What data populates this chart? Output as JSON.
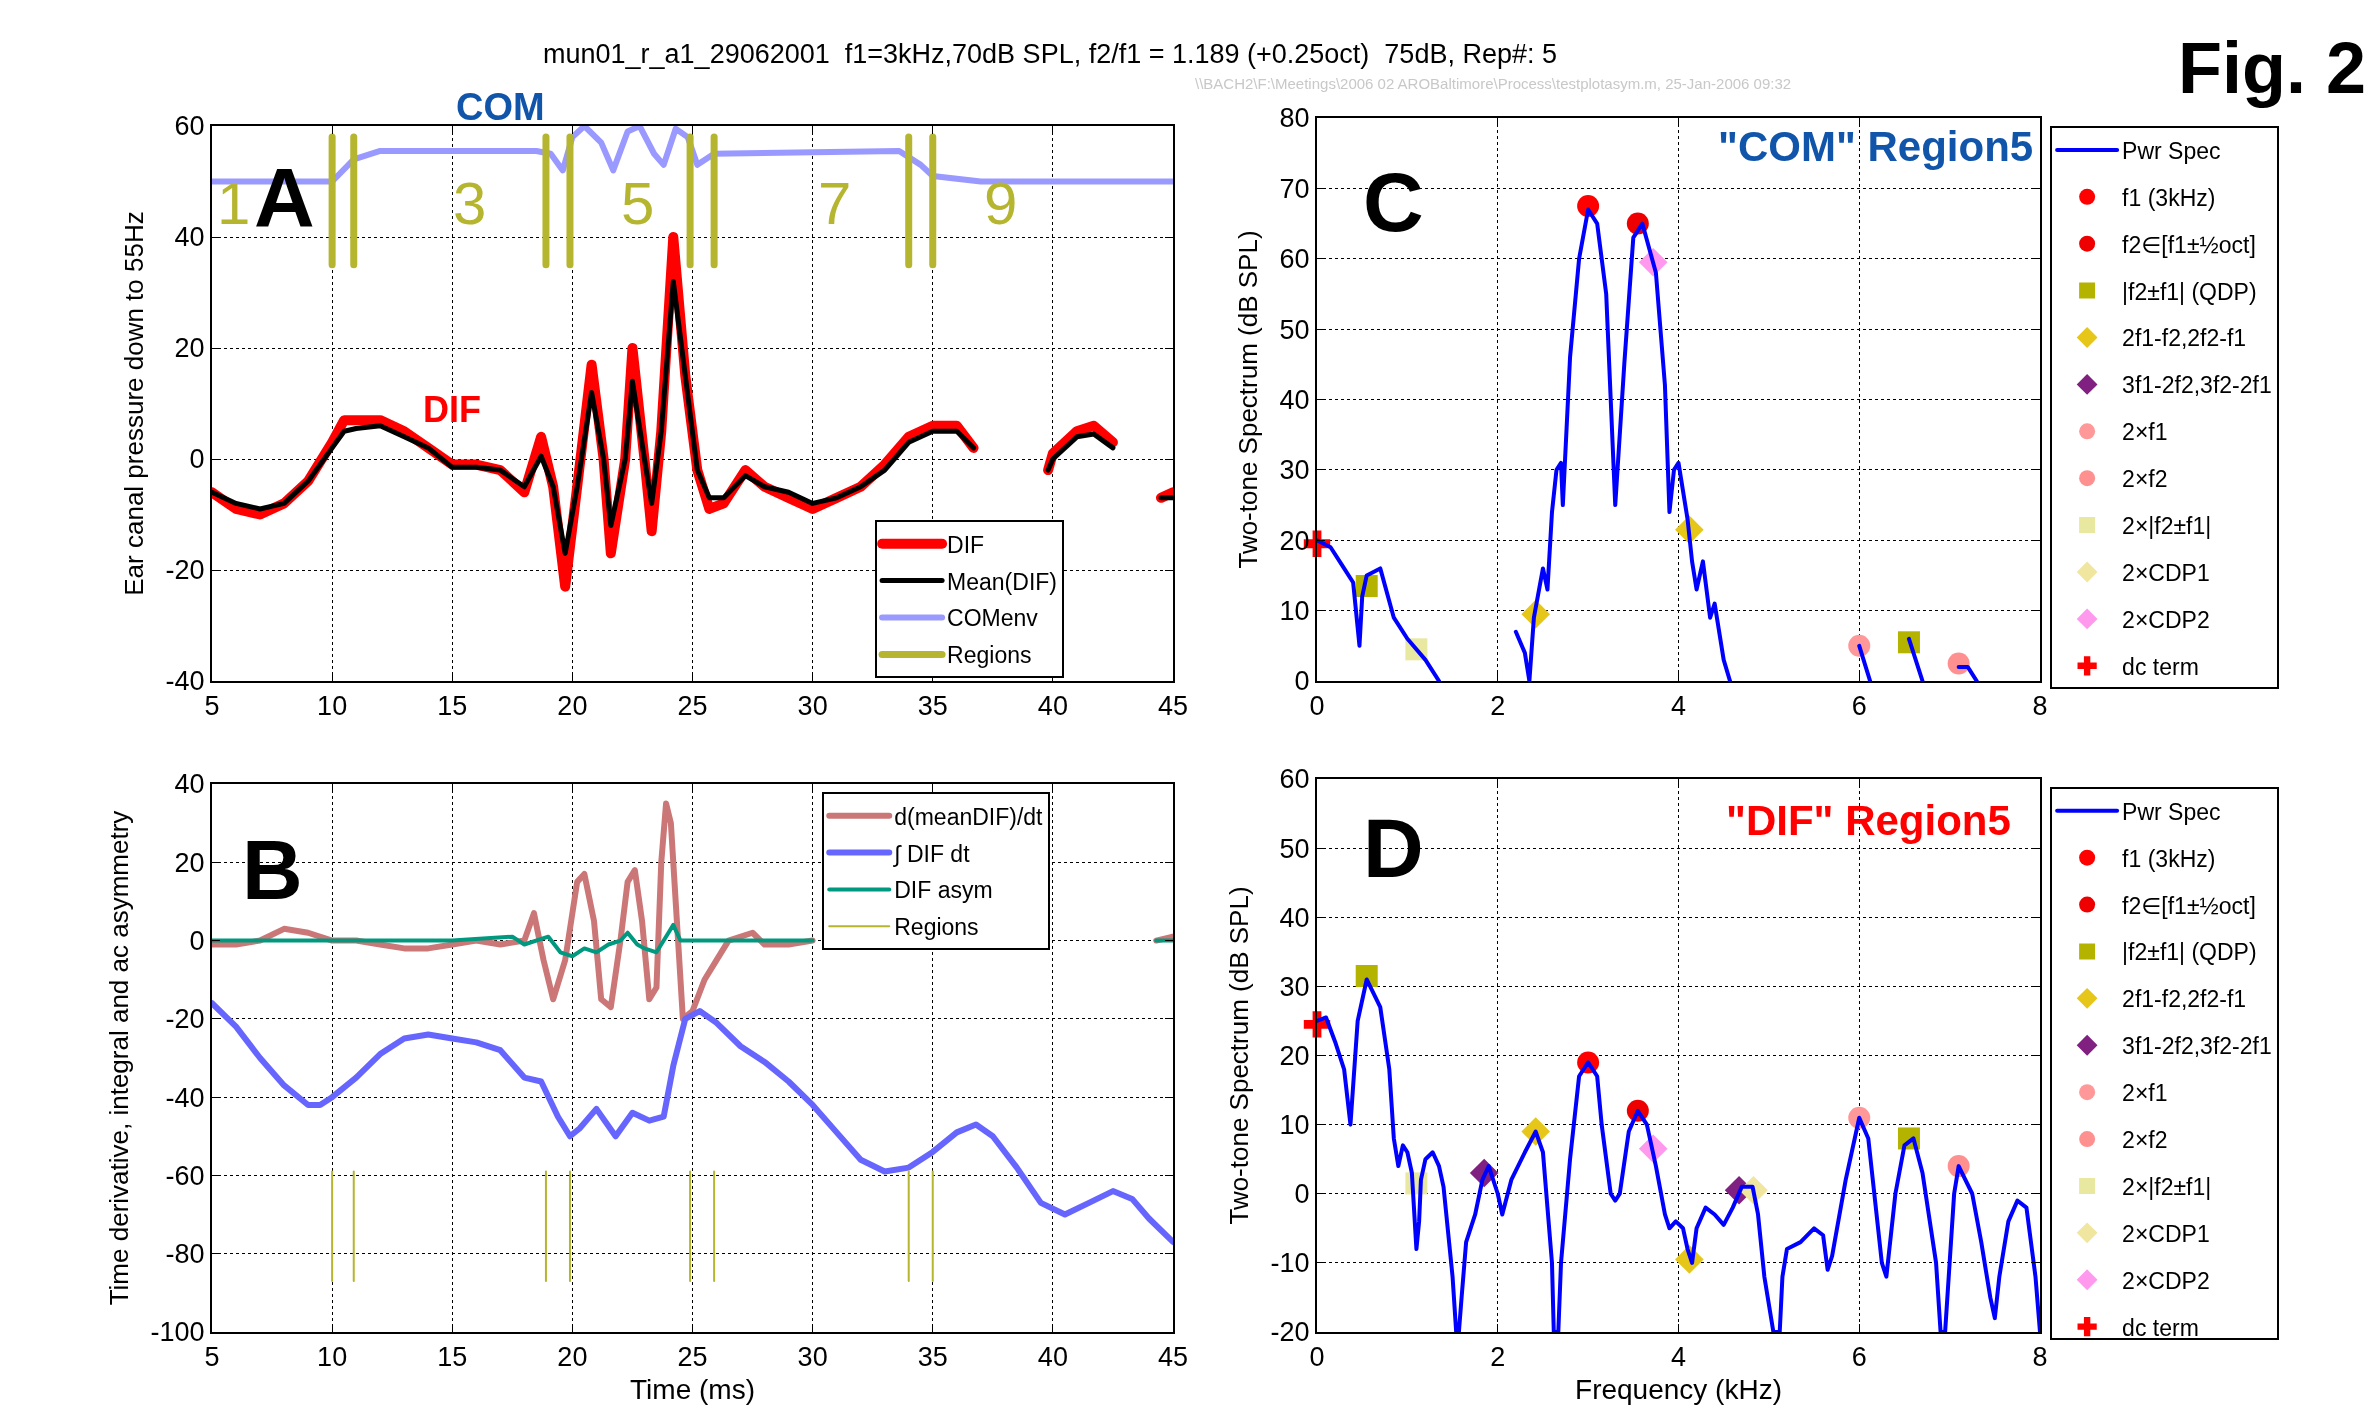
{
  "chart_data": [
    {
      "type": "line",
      "title": "mun01_r_a1_29062001  f1=3kHz,70dB SPL, f2/f1 = 1.189 (+0.25oct)  75dB, Rep#: 5",
      "ylabel": "Ear canal pressure down to 55Hz",
      "annotations": [
        "A",
        "COM",
        "DIF",
        "1",
        "3",
        "5",
        "7",
        "9",
        "\\\\BACH2\\F:\\Meetings\\2006 02 AROBaltimore\\Process\\testplotasym.m, 25-Jan-2006 09:32",
        "Fig. 2"
      ],
      "xlim": [
        5,
        45
      ],
      "xticks": [
        5,
        10,
        15,
        20,
        25,
        30,
        35,
        40,
        45
      ],
      "ylim": [
        -40,
        60
      ],
      "yticks": [
        -40,
        -20,
        0,
        20,
        40,
        60
      ],
      "grid": true,
      "legend": "bottom right",
      "series": [
        {
          "name": "DIF",
          "color": "#ff0000",
          "x": [
            5,
            6,
            7,
            8,
            9,
            10,
            10.5,
            11,
            12,
            13,
            14,
            15,
            16,
            17,
            18,
            18.7,
            19.2,
            19.7,
            20.2,
            20.8,
            21.3,
            21.6,
            22.2,
            22.5,
            23.0,
            23.3,
            23.7,
            24.2,
            24.7,
            25.2,
            25.7,
            26.3,
            27.2,
            28,
            29,
            30,
            31,
            32,
            33,
            34,
            35,
            36,
            36.7,
            37.3,
            39.8,
            40,
            41,
            41.7,
            42.5,
            43.2,
            44.5,
            45
          ],
          "values": [
            -6,
            -9,
            -10,
            -8,
            -4,
            3,
            7,
            7,
            7,
            5,
            2,
            -1,
            -1,
            -2,
            -6,
            4,
            -5,
            -23,
            -5,
            17,
            0,
            -17,
            0,
            20,
            0,
            -13,
            5,
            40,
            15,
            -2,
            -9,
            -8,
            -2,
            -5,
            -7,
            -9,
            -7,
            -5,
            -1,
            4,
            6,
            6,
            2,
            null,
            -2,
            1,
            5,
            6,
            3,
            null,
            -7,
            -6
          ]
        },
        {
          "name": "Mean(DIF)",
          "color": "#000000",
          "x": [
            5,
            6,
            7,
            8,
            9,
            10,
            10.5,
            11,
            12,
            13,
            14,
            15,
            16,
            17,
            18,
            18.7,
            19.2,
            19.7,
            20.2,
            20.8,
            21.3,
            21.6,
            22.2,
            22.5,
            23.0,
            23.3,
            23.7,
            24.2,
            24.7,
            25.2,
            25.7,
            26.3,
            27.2,
            28,
            29,
            30,
            31,
            32,
            33,
            34,
            35,
            36,
            36.7,
            37.3,
            39.8,
            40,
            41,
            41.7,
            42.5,
            43.2,
            44.5,
            45
          ],
          "values": [
            -6,
            -8,
            -9,
            -8,
            -4,
            2,
            5,
            5.5,
            6,
            4,
            2,
            -1.5,
            -1.5,
            -2,
            -5,
            0.5,
            -5,
            -17,
            -5,
            12,
            0,
            -12,
            0,
            14,
            0,
            -8,
            5,
            32,
            15,
            -2,
            -7,
            -7,
            -3,
            -5,
            -6,
            -8,
            -7,
            -5,
            -2,
            3,
            5,
            5,
            2,
            null,
            -2,
            0,
            4,
            4.5,
            2,
            null,
            -7,
            -7
          ]
        },
        {
          "name": "COMenv",
          "color": "#9999ff",
          "x": [
            5,
            10,
            10.9,
            12,
            18.5,
            19.1,
            19.6,
            20,
            20.5,
            21.2,
            21.7,
            22.3,
            22.8,
            23.4,
            23.8,
            24.3,
            24.8,
            25.2,
            25.9,
            33.6,
            34.5,
            35,
            36,
            37,
            45
          ],
          "values": [
            50,
            50,
            54,
            55.5,
            55.5,
            55,
            52,
            58,
            60,
            57,
            52,
            59,
            60,
            55,
            53,
            59.5,
            58,
            53,
            55,
            55.5,
            53,
            51,
            50.5,
            50,
            50
          ]
        },
        {
          "name": "Regions",
          "color": "#b5b530",
          "x": [
            10,
            10,
            null,
            10.9,
            10.9,
            null,
            18.9,
            18.9,
            null,
            19.9,
            19.9,
            null,
            24.9,
            24.9,
            null,
            25.9,
            25.9,
            null,
            34,
            34,
            null,
            35,
            35
          ],
          "values": [
            35,
            58,
            null,
            35,
            58,
            null,
            35,
            58,
            null,
            35,
            58,
            null,
            35,
            58,
            null,
            35,
            58,
            null,
            35,
            58,
            null,
            35,
            58
          ]
        }
      ]
    },
    {
      "type": "line",
      "xlabel": "Time (ms)",
      "ylabel": "Time derivative, integral and ac asymmetry",
      "annotations": [
        "B"
      ],
      "xlim": [
        5,
        45
      ],
      "xticks": [
        5,
        10,
        15,
        20,
        25,
        30,
        35,
        40,
        45
      ],
      "ylim": [
        -100,
        40
      ],
      "yticks": [
        -100,
        -80,
        -60,
        -40,
        -20,
        0,
        20,
        40
      ],
      "grid": true,
      "legend": "top right",
      "series": [
        {
          "name": "d(meanDIF)/dt",
          "color": "#cc7777",
          "x": [
            5,
            6,
            7,
            8,
            9,
            10,
            11,
            12,
            13,
            14,
            15,
            16,
            17,
            18,
            18.4,
            18.8,
            19.2,
            19.7,
            20.2,
            20.5,
            20.9,
            21.2,
            21.6,
            22.0,
            22.3,
            22.6,
            22.9,
            23.2,
            23.5,
            23.7,
            23.9,
            24.1,
            24.4,
            24.6,
            25,
            25.5,
            26,
            26.5,
            27.5,
            28,
            29,
            30,
            31,
            44.3,
            45
          ],
          "values": [
            -1,
            -1,
            0,
            3,
            2,
            0,
            0,
            -1,
            -2,
            -2,
            -1,
            0,
            -1,
            0,
            7,
            -5,
            -15,
            -5,
            15,
            17,
            5,
            -15,
            -17,
            0,
            15,
            18,
            5,
            -15,
            -12,
            20,
            35,
            30,
            0,
            -20,
            -18,
            -10,
            -5,
            0,
            2,
            -1,
            -1,
            0,
            null,
            0,
            1
          ]
        },
        {
          "name": "∫ DIF dt",
          "color": "#6666ff",
          "x": [
            5,
            6,
            7,
            8,
            9,
            9.5,
            10,
            11,
            12,
            13,
            14,
            15,
            16,
            17,
            18,
            18.7,
            19.4,
            19.9,
            20.3,
            21,
            21.8,
            22.5,
            23.2,
            23.8,
            24.2,
            24.7,
            25.3,
            26,
            27,
            28,
            29,
            30,
            31,
            32,
            33,
            34,
            35,
            36,
            36.8,
            37.5,
            38.5,
            39.5,
            40.5,
            41.5,
            42.5,
            43.3,
            44,
            45
          ],
          "values": [
            -16,
            -22,
            -30,
            -37,
            -42,
            -42,
            -40,
            -35,
            -29,
            -25,
            -24,
            -25,
            -26,
            -28,
            -35,
            -36,
            -45,
            -50,
            -48,
            -43,
            -50,
            -44,
            -46,
            -45,
            -32,
            -20,
            -18,
            -21,
            -27,
            -31,
            -36,
            -42,
            -49,
            -56,
            -59,
            -58,
            -54,
            -49,
            -47,
            -50,
            -58,
            -67,
            -70,
            -67,
            -64,
            -66,
            -71,
            -77
          ]
        },
        {
          "name": "DIF asym",
          "color": "#009980",
          "x": [
            5,
            10,
            15,
            17.5,
            18,
            19,
            19.5,
            20,
            20.5,
            21,
            21.5,
            22,
            22.3,
            22.7,
            23,
            23.5,
            24,
            24.2,
            24.5,
            25,
            26,
            30,
            31,
            44.3,
            45
          ],
          "values": [
            0,
            0,
            0,
            1,
            -1,
            1,
            -3,
            -4,
            -2,
            -3,
            -1,
            0,
            2,
            -1,
            -2,
            -3,
            2,
            4,
            0,
            0,
            0,
            0,
            null,
            0,
            0
          ]
        },
        {
          "name": "Regions",
          "color": "#b5b530",
          "x": [
            10,
            10,
            null,
            10.9,
            10.9,
            null,
            18.9,
            18.9,
            null,
            19.9,
            19.9,
            null,
            24.9,
            24.9,
            null,
            25.9,
            25.9,
            null,
            34,
            34,
            null,
            35,
            35
          ],
          "values": [
            -87,
            -59,
            null,
            -87,
            -59,
            null,
            -87,
            -59,
            null,
            -87,
            -59,
            null,
            -87,
            -59,
            null,
            -87,
            -59,
            null,
            -87,
            -59,
            null,
            -87,
            -59
          ]
        }
      ]
    },
    {
      "type": "line",
      "ylabel": "Two-tone Spectrum (dB SPL)",
      "annotations": [
        "C",
        "\"COM\" Region5"
      ],
      "xlim": [
        0,
        8
      ],
      "xticks": [
        0,
        2,
        4,
        6,
        8
      ],
      "ylim": [
        0,
        80
      ],
      "yticks": [
        0,
        10,
        20,
        30,
        40,
        50,
        60,
        70,
        80
      ],
      "grid": true,
      "legend": "right",
      "series": [
        {
          "name": "Pwr Spec",
          "color": "#0000ff",
          "x": [
            0,
            0.15,
            0.3,
            0.4,
            0.47,
            0.5,
            0.55,
            0.7,
            0.85,
            1.0,
            1.2,
            1.35,
            2.15,
            2.2,
            2.3,
            2.35,
            2.4,
            2.5,
            2.55,
            2.6,
            2.65,
            2.7,
            2.72,
            2.8,
            2.9,
            3.0,
            3.1,
            3.2,
            3.3,
            3.4,
            3.5,
            3.6,
            3.75,
            3.85,
            3.9,
            3.95,
            4.0,
            4.1,
            4.15,
            4.2,
            4.27,
            4.35,
            4.4,
            4.5,
            4.57,
            5.9,
            6.0,
            6.12,
            6.45,
            6.55,
            6.7,
            7.0,
            7.1,
            7.2,
            7.3
          ],
          "values": [
            20,
            19,
            16,
            14,
            5,
            12,
            15,
            16,
            9,
            6,
            3,
            0,
            null,
            7,
            4,
            0,
            9,
            16,
            13,
            24,
            30,
            31,
            25,
            46,
            60,
            67,
            65,
            55,
            25,
            45,
            63,
            65,
            58,
            42,
            24,
            30,
            31,
            23,
            17,
            13,
            17,
            9,
            11,
            3,
            0,
            null,
            5,
            0,
            null,
            6,
            0,
            null,
            2,
            2,
            0
          ]
        },
        {
          "name": "f1 (3kHz)",
          "type": "scatter",
          "marker": "circle",
          "color": "#ff0000",
          "x": [
            3
          ],
          "values": [
            67.5
          ]
        },
        {
          "name": "f2∈[f1±½oct]",
          "type": "scatter",
          "marker": "circle",
          "color": "#ee0000",
          "x": [
            3.55
          ],
          "values": [
            65
          ]
        },
        {
          "name": "|f2±f1| (QDP)",
          "type": "scatter",
          "marker": "square",
          "color": "#b3b300",
          "x": [
            0.55,
            6.55
          ],
          "values": [
            13.5,
            5.5
          ]
        },
        {
          "name": "2f1-f2,2f2-f1",
          "type": "scatter",
          "marker": "diamond",
          "color": "#e6c619",
          "x": [
            2.42,
            4.12
          ],
          "values": [
            9.5,
            21.5
          ]
        },
        {
          "name": "3f1-2f2,3f2-2f1",
          "type": "scatter",
          "marker": "diamond",
          "color": "#802080"
        },
        {
          "name": "2×f1",
          "type": "scatter",
          "marker": "circle",
          "color": "#ff9999",
          "x": [
            6
          ],
          "values": [
            5
          ]
        },
        {
          "name": "2×f2",
          "type": "scatter",
          "marker": "circle",
          "color": "#ff9090",
          "x": [
            7.1
          ],
          "values": [
            2.5
          ]
        },
        {
          "name": "2×|f2±f1|",
          "type": "scatter",
          "marker": "square",
          "color": "#e8e8a0",
          "x": [
            1.1
          ],
          "values": [
            4.5
          ]
        },
        {
          "name": "2×CDP1",
          "type": "scatter",
          "marker": "diamond",
          "color": "#f0e6a0"
        },
        {
          "name": "2×CDP2",
          "type": "scatter",
          "marker": "diamond",
          "color": "#ff99ee",
          "x": [
            3.72
          ],
          "values": [
            59.5
          ]
        },
        {
          "name": "dc term",
          "type": "scatter",
          "marker": "cross",
          "color": "#ff0000",
          "x": [
            0
          ],
          "values": [
            19.5
          ]
        }
      ]
    },
    {
      "type": "line",
      "xlabel": "Frequency (kHz)",
      "ylabel": "Two-tone Spectrum (dB SPL)",
      "annotations": [
        "D",
        "\"DIF\" Region5"
      ],
      "xlim": [
        0,
        8
      ],
      "xticks": [
        0,
        2,
        4,
        6,
        8
      ],
      "ylim": [
        -20,
        60
      ],
      "yticks": [
        -20,
        -10,
        0,
        10,
        20,
        30,
        40,
        50,
        60
      ],
      "grid": true,
      "legend": "right",
      "series": [
        {
          "name": "Pwr Spec",
          "color": "#0000ff",
          "x": [
            0,
            0.1,
            0.2,
            0.3,
            0.37,
            0.45,
            0.55,
            0.7,
            0.8,
            0.85,
            0.9,
            0.95,
            1.0,
            1.05,
            1.1,
            1.13,
            1.15,
            1.2,
            1.28,
            1.35,
            1.4,
            1.5,
            1.54,
            1.57,
            1.6,
            1.65,
            1.75,
            1.83,
            1.9,
            2.0,
            2.05,
            2.15,
            2.3,
            2.42,
            2.5,
            2.6,
            2.62,
            2.67,
            2.7,
            2.8,
            2.9,
            3.0,
            3.1,
            3.15,
            3.25,
            3.3,
            3.35,
            3.45,
            3.55,
            3.65,
            3.75,
            3.85,
            3.9,
            3.97,
            4.05,
            4.1,
            4.15,
            4.2,
            4.3,
            4.4,
            4.5,
            4.6,
            4.7,
            4.82,
            4.88,
            4.95,
            5.05,
            5.12,
            5.15,
            5.2,
            5.35,
            5.5,
            5.6,
            5.65,
            5.7,
            5.85,
            6.0,
            6.1,
            6.25,
            6.3,
            6.4,
            6.5,
            6.6,
            6.7,
            6.85,
            6.9,
            6.95,
            7.05,
            7.1,
            7.25,
            7.35,
            7.45,
            7.5,
            7.55,
            7.65,
            7.75,
            7.85,
            7.95,
            8.0
          ],
          "values": [
            25,
            25.5,
            22,
            18,
            10,
            25,
            31,
            27,
            18,
            8,
            4,
            7,
            6,
            3,
            -8,
            -4,
            2,
            5,
            6,
            4,
            1,
            -12,
            -20,
            -20,
            -15,
            -7,
            -3,
            2,
            4,
            0,
            -3,
            2,
            6,
            9,
            6,
            -10,
            -20,
            -20,
            -10,
            5,
            17,
            19,
            17,
            10,
            0,
            -1,
            0,
            9,
            12,
            10,
            4,
            -3,
            -5,
            -4,
            -5,
            -8,
            -10,
            -5,
            -2,
            -3,
            -4.5,
            -2,
            1,
            1,
            -3,
            -12,
            -20,
            -20,
            -12,
            -8,
            -7,
            -5,
            -6,
            -11,
            -9,
            2,
            11,
            8,
            -10,
            -12,
            0,
            7,
            8,
            3,
            -10,
            -20,
            -20,
            0,
            4,
            0,
            -7,
            -15,
            -18,
            -12,
            -4,
            -1,
            -2,
            -12,
            -20
          ]
        },
        {
          "name": "f1 (3kHz)",
          "type": "scatter",
          "marker": "circle",
          "color": "#ff0000",
          "x": [
            3
          ],
          "values": [
            19
          ]
        },
        {
          "name": "f2∈[f1±½oct]",
          "type": "scatter",
          "marker": "circle",
          "color": "#ee0000",
          "x": [
            3.55
          ],
          "values": [
            12
          ]
        },
        {
          "name": "|f2±f1| (QDP)",
          "type": "scatter",
          "marker": "square",
          "color": "#b3b300",
          "x": [
            0.55,
            6.55
          ],
          "values": [
            31.5,
            8
          ]
        },
        {
          "name": "2f1-f2,2f2-f1",
          "type": "scatter",
          "marker": "diamond",
          "color": "#e6c619",
          "x": [
            2.42,
            4.12
          ],
          "values": [
            9,
            -9.5
          ]
        },
        {
          "name": "3f1-2f2,3f2-2f1",
          "type": "scatter",
          "marker": "diamond",
          "color": "#802080",
          "x": [
            1.85,
            4.67
          ],
          "values": [
            3,
            0.5
          ]
        },
        {
          "name": "2×f1",
          "type": "scatter",
          "marker": "circle",
          "color": "#ff9999",
          "x": [
            6
          ],
          "values": [
            11
          ]
        },
        {
          "name": "2×f2",
          "type": "scatter",
          "marker": "circle",
          "color": "#ff9090",
          "x": [
            7.1
          ],
          "values": [
            4
          ]
        },
        {
          "name": "2×|f2±f1|",
          "type": "scatter",
          "marker": "square",
          "color": "#e8e8a0",
          "x": [
            1.1
          ],
          "values": [
            1.5
          ]
        },
        {
          "name": "2×CDP1",
          "type": "scatter",
          "marker": "diamond",
          "color": "#f0e6a0",
          "x": [
            4.83
          ],
          "values": [
            0.5
          ]
        },
        {
          "name": "2×CDP2",
          "type": "scatter",
          "marker": "diamond",
          "color": "#ff99ee",
          "x": [
            3.72
          ],
          "values": [
            6.5
          ]
        },
        {
          "name": "dc term",
          "type": "scatter",
          "marker": "cross",
          "color": "#ff0000",
          "x": [
            0
          ],
          "values": [
            24.5
          ]
        }
      ]
    }
  ]
}
